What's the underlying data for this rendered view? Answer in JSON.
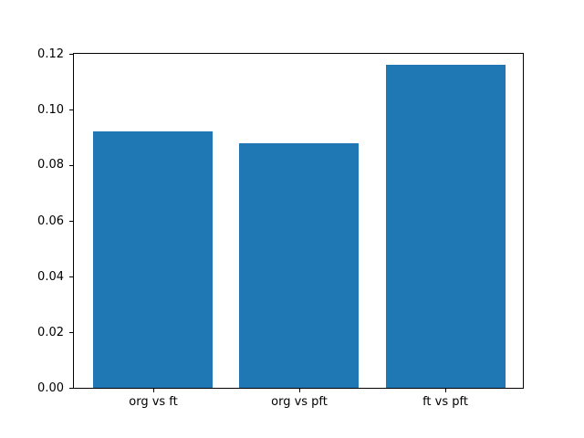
{
  "figure": {
    "background": "#ffffff",
    "axis_color": "#000000",
    "text_color": "#000000"
  },
  "chart_data": {
    "type": "bar",
    "title": "",
    "xlabel": "",
    "ylabel": "",
    "categories": [
      "org vs ft",
      "org vs pft",
      "ft vs pft"
    ],
    "values": [
      0.092,
      0.088,
      0.116
    ],
    "bar_color": "#1f77b4",
    "bar_width_fraction": 0.8,
    "ylim": [
      0,
      0.12
    ],
    "yticks": [
      0,
      0.02,
      0.04,
      0.06,
      0.08,
      0.1,
      0.12
    ],
    "ytick_labels": [
      "0.00",
      "0.02",
      "0.04",
      "0.06",
      "0.08",
      "0.10",
      "0.12"
    ],
    "grid": false,
    "legend": null,
    "spines": "box"
  }
}
